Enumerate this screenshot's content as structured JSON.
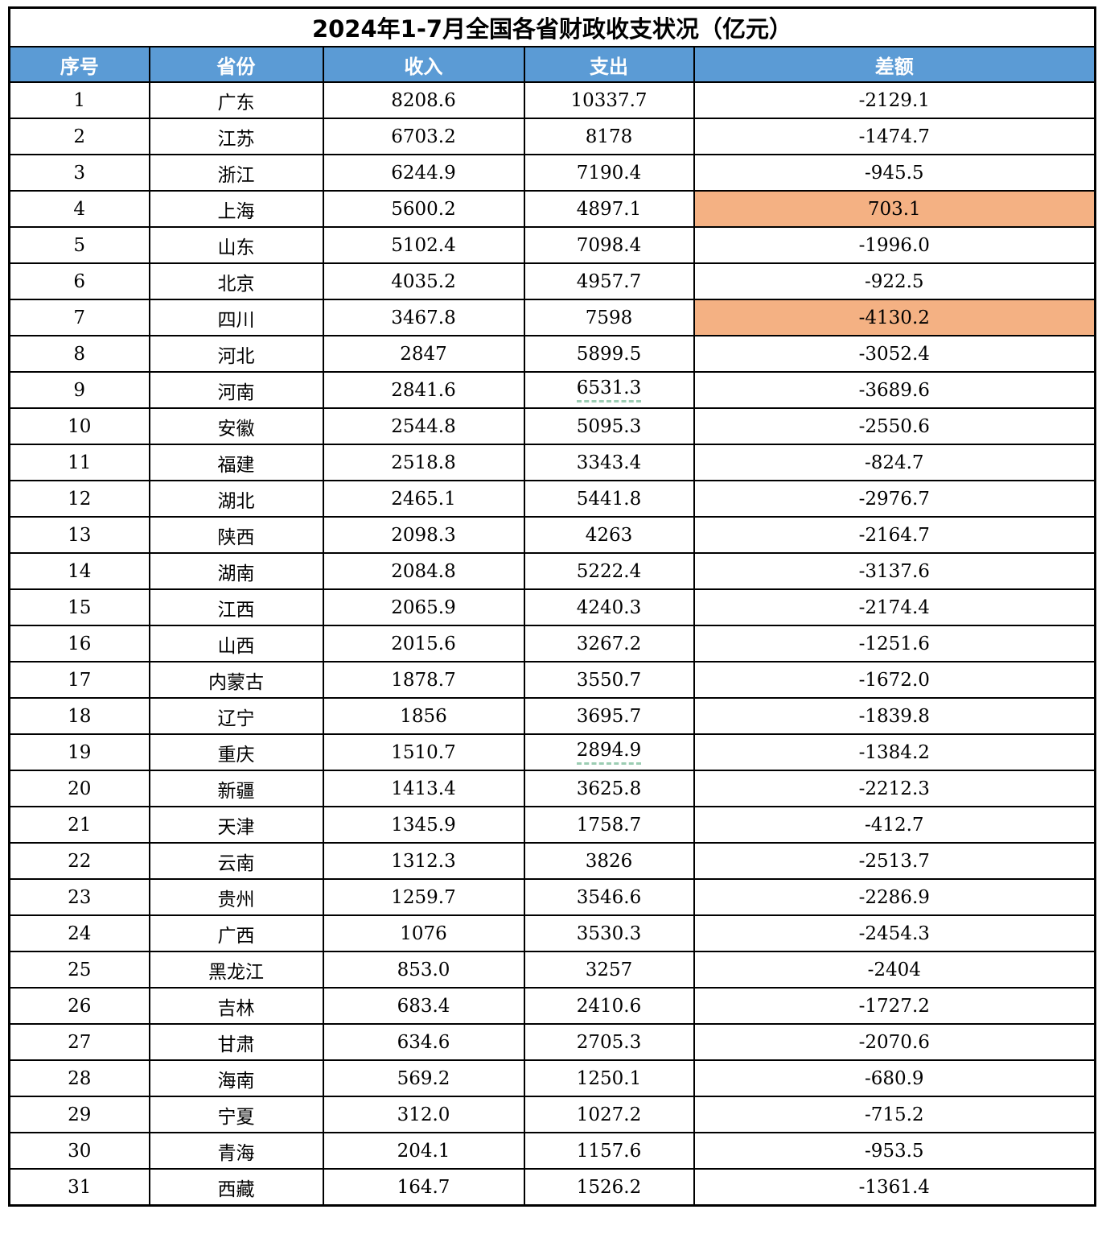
{
  "title": "2024年1-7月全国各省财政收支状况（亿元）",
  "colors": {
    "header_bg": "#5B9BD5",
    "header_text": "#FFFFFF",
    "highlight_bg": "#F4B183",
    "underline_green": "#9CCDB3",
    "border": "#000000"
  },
  "chart_data": {
    "type": "table",
    "title": "2024年1-7月全国各省财政收支状况（亿元）",
    "columns": [
      "序号",
      "省份",
      "收入",
      "支出",
      "差额"
    ],
    "rows": [
      {
        "no": "1",
        "province": "广东",
        "income": "8208.6",
        "expense": "10337.7",
        "diff": "-2129.1",
        "diff_highlight": false,
        "expense_underline": false
      },
      {
        "no": "2",
        "province": "江苏",
        "income": "6703.2",
        "expense": "8178",
        "diff": "-1474.7",
        "diff_highlight": false,
        "expense_underline": false
      },
      {
        "no": "3",
        "province": "浙江",
        "income": "6244.9",
        "expense": "7190.4",
        "diff": "-945.5",
        "diff_highlight": false,
        "expense_underline": false
      },
      {
        "no": "4",
        "province": "上海",
        "income": "5600.2",
        "expense": "4897.1",
        "diff": "703.1",
        "diff_highlight": true,
        "expense_underline": false
      },
      {
        "no": "5",
        "province": "山东",
        "income": "5102.4",
        "expense": "7098.4",
        "diff": "-1996.0",
        "diff_highlight": false,
        "expense_underline": false
      },
      {
        "no": "6",
        "province": "北京",
        "income": "4035.2",
        "expense": "4957.7",
        "diff": "-922.5",
        "diff_highlight": false,
        "expense_underline": false
      },
      {
        "no": "7",
        "province": "四川",
        "income": "3467.8",
        "expense": "7598",
        "diff": "-4130.2",
        "diff_highlight": true,
        "expense_underline": false
      },
      {
        "no": "8",
        "province": "河北",
        "income": "2847",
        "expense": "5899.5",
        "diff": "-3052.4",
        "diff_highlight": false,
        "expense_underline": false
      },
      {
        "no": "9",
        "province": "河南",
        "income": "2841.6",
        "expense": "6531.3",
        "diff": "-3689.6",
        "diff_highlight": false,
        "expense_underline": true
      },
      {
        "no": "10",
        "province": "安徽",
        "income": "2544.8",
        "expense": "5095.3",
        "diff": "-2550.6",
        "diff_highlight": false,
        "expense_underline": false
      },
      {
        "no": "11",
        "province": "福建",
        "income": "2518.8",
        "expense": "3343.4",
        "diff": "-824.7",
        "diff_highlight": false,
        "expense_underline": false
      },
      {
        "no": "12",
        "province": "湖北",
        "income": "2465.1",
        "expense": "5441.8",
        "diff": "-2976.7",
        "diff_highlight": false,
        "expense_underline": false
      },
      {
        "no": "13",
        "province": "陕西",
        "income": "2098.3",
        "expense": "4263",
        "diff": "-2164.7",
        "diff_highlight": false,
        "expense_underline": false
      },
      {
        "no": "14",
        "province": "湖南",
        "income": "2084.8",
        "expense": "5222.4",
        "diff": "-3137.6",
        "diff_highlight": false,
        "expense_underline": false
      },
      {
        "no": "15",
        "province": "江西",
        "income": "2065.9",
        "expense": "4240.3",
        "diff": "-2174.4",
        "diff_highlight": false,
        "expense_underline": false
      },
      {
        "no": "16",
        "province": "山西",
        "income": "2015.6",
        "expense": "3267.2",
        "diff": "-1251.6",
        "diff_highlight": false,
        "expense_underline": false
      },
      {
        "no": "17",
        "province": "内蒙古",
        "income": "1878.7",
        "expense": "3550.7",
        "diff": "-1672.0",
        "diff_highlight": false,
        "expense_underline": false
      },
      {
        "no": "18",
        "province": "辽宁",
        "income": "1856",
        "expense": "3695.7",
        "diff": "-1839.8",
        "diff_highlight": false,
        "expense_underline": false
      },
      {
        "no": "19",
        "province": "重庆",
        "income": "1510.7",
        "expense": "2894.9",
        "diff": "-1384.2",
        "diff_highlight": false,
        "expense_underline": true
      },
      {
        "no": "20",
        "province": "新疆",
        "income": "1413.4",
        "expense": "3625.8",
        "diff": "-2212.3",
        "diff_highlight": false,
        "expense_underline": false
      },
      {
        "no": "21",
        "province": "天津",
        "income": "1345.9",
        "expense": "1758.7",
        "diff": "-412.7",
        "diff_highlight": false,
        "expense_underline": false
      },
      {
        "no": "22",
        "province": "云南",
        "income": "1312.3",
        "expense": "3826",
        "diff": "-2513.7",
        "diff_highlight": false,
        "expense_underline": false
      },
      {
        "no": "23",
        "province": "贵州",
        "income": "1259.7",
        "expense": "3546.6",
        "diff": "-2286.9",
        "diff_highlight": false,
        "expense_underline": false
      },
      {
        "no": "24",
        "province": "广西",
        "income": "1076",
        "expense": "3530.3",
        "diff": "-2454.3",
        "diff_highlight": false,
        "expense_underline": false
      },
      {
        "no": "25",
        "province": "黑龙江",
        "income": "853.0",
        "expense": "3257",
        "diff": "-2404",
        "diff_highlight": false,
        "expense_underline": false
      },
      {
        "no": "26",
        "province": "吉林",
        "income": "683.4",
        "expense": "2410.6",
        "diff": "-1727.2",
        "diff_highlight": false,
        "expense_underline": false
      },
      {
        "no": "27",
        "province": "甘肃",
        "income": "634.6",
        "expense": "2705.3",
        "diff": "-2070.6",
        "diff_highlight": false,
        "expense_underline": false
      },
      {
        "no": "28",
        "province": "海南",
        "income": "569.2",
        "expense": "1250.1",
        "diff": "-680.9",
        "diff_highlight": false,
        "expense_underline": false
      },
      {
        "no": "29",
        "province": "宁夏",
        "income": "312.0",
        "expense": "1027.2",
        "diff": "-715.2",
        "diff_highlight": false,
        "expense_underline": false
      },
      {
        "no": "30",
        "province": "青海",
        "income": "204.1",
        "expense": "1157.6",
        "diff": "-953.5",
        "diff_highlight": false,
        "expense_underline": false
      },
      {
        "no": "31",
        "province": "西藏",
        "income": "164.7",
        "expense": "1526.2",
        "diff": "-1361.4",
        "diff_highlight": false,
        "expense_underline": false
      }
    ]
  }
}
